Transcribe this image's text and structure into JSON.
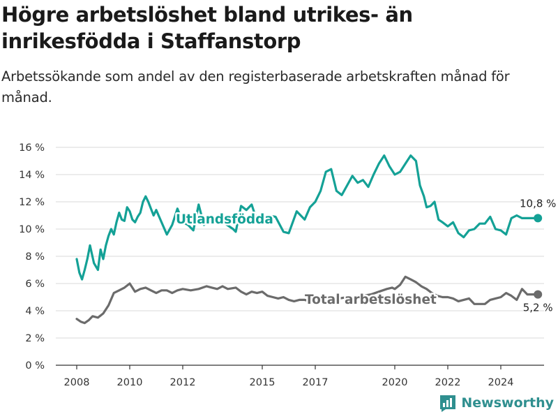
{
  "title": "Högre arbetslöshet bland utrikes- än inrikesfödda i Staffanstorp",
  "subtitle": "Arbetssökande som andel av den registerbaserade arbetskraften månad för månad.",
  "brand": {
    "name": "Newsworthy",
    "icon": "bar-chart-logo-icon"
  },
  "colors": {
    "foreign": "#14a196",
    "total": "#6b6b6b",
    "grid": "#d9d9d9",
    "axis": "#333333"
  },
  "chart_data": {
    "type": "line",
    "ylim": [
      0,
      16
    ],
    "y_ticks": [
      0,
      2,
      4,
      6,
      8,
      10,
      12,
      14,
      16
    ],
    "y_tick_labels": [
      "0 %",
      "2 %",
      "4 %",
      "6 %",
      "8 %",
      "10 %",
      "12 %",
      "14 %",
      "16 %"
    ],
    "x_range": [
      2008,
      2025.5
    ],
    "x_ticks": [
      2008,
      2010,
      2012,
      2015,
      2017,
      2020,
      2022,
      2024
    ],
    "x_tick_labels": [
      "2008",
      "2010",
      "2012",
      "2015",
      "2017",
      "2020",
      "2022",
      "2024"
    ],
    "grid": "horizontal",
    "series": [
      {
        "name": "Utlandsfödda",
        "color": "#14a196",
        "end_label": "10,8 %",
        "x": [
          2008.0,
          2008.1,
          2008.2,
          2008.3,
          2008.4,
          2008.5,
          2008.65,
          2008.8,
          2008.9,
          2009.0,
          2009.1,
          2009.2,
          2009.3,
          2009.4,
          2009.5,
          2009.6,
          2009.7,
          2009.8,
          2009.9,
          2010.0,
          2010.1,
          2010.2,
          2010.3,
          2010.4,
          2010.5,
          2010.6,
          2010.7,
          2010.8,
          2010.9,
          2011.0,
          2011.2,
          2011.4,
          2011.6,
          2011.8,
          2012.0,
          2012.2,
          2012.4,
          2012.6,
          2012.8,
          2013.0,
          2013.3,
          2013.6,
          2013.9,
          2014.0,
          2014.2,
          2014.4,
          2014.6,
          2014.8,
          2015.0,
          2015.2,
          2015.5,
          2015.8,
          2016.0,
          2016.3,
          2016.6,
          2016.8,
          2017.0,
          2017.2,
          2017.4,
          2017.6,
          2017.8,
          2018.0,
          2018.2,
          2018.4,
          2018.6,
          2018.8,
          2019.0,
          2019.2,
          2019.4,
          2019.6,
          2019.8,
          2020.0,
          2020.2,
          2020.4,
          2020.6,
          2020.8,
          2020.95,
          2021.1,
          2021.2,
          2021.35,
          2021.5,
          2021.65,
          2021.8,
          2022.0,
          2022.2,
          2022.4,
          2022.6,
          2022.8,
          2023.0,
          2023.2,
          2023.4,
          2023.6,
          2023.8,
          2024.0,
          2024.2,
          2024.4,
          2024.6,
          2024.8,
          2025.0,
          2025.4
        ],
        "values": [
          7.8,
          6.8,
          6.3,
          7.0,
          7.8,
          8.8,
          7.5,
          7.0,
          8.5,
          7.8,
          8.8,
          9.5,
          10.0,
          9.6,
          10.5,
          11.2,
          10.7,
          10.6,
          11.6,
          11.3,
          10.7,
          10.5,
          10.9,
          11.2,
          12.0,
          12.4,
          12.0,
          11.5,
          11.0,
          11.4,
          10.5,
          9.6,
          10.3,
          11.5,
          10.5,
          10.3,
          9.9,
          11.8,
          10.3,
          10.8,
          10.6,
          10.4,
          10.0,
          9.8,
          11.7,
          11.4,
          11.8,
          10.6,
          10.4,
          11.0,
          10.9,
          9.8,
          9.7,
          11.3,
          10.7,
          11.6,
          12.0,
          12.8,
          14.2,
          14.4,
          12.8,
          12.5,
          13.2,
          13.9,
          13.4,
          13.6,
          13.1,
          14.0,
          14.8,
          15.4,
          14.6,
          14.0,
          14.2,
          14.8,
          15.4,
          15.0,
          13.2,
          12.4,
          11.6,
          11.7,
          12.0,
          10.7,
          10.5,
          10.2,
          10.5,
          9.7,
          9.4,
          9.9,
          10.0,
          10.4,
          10.4,
          10.9,
          10.0,
          9.9,
          9.6,
          10.8,
          11.0,
          10.8,
          10.8,
          10.8
        ]
      },
      {
        "name": "Total arbetslöshet",
        "color": "#6b6b6b",
        "end_label": "5,2 %",
        "x": [
          2008.0,
          2008.15,
          2008.3,
          2008.45,
          2008.6,
          2008.8,
          2009.0,
          2009.2,
          2009.4,
          2009.6,
          2009.8,
          2010.0,
          2010.2,
          2010.4,
          2010.6,
          2010.8,
          2011.0,
          2011.2,
          2011.4,
          2011.6,
          2011.8,
          2012.0,
          2012.3,
          2012.6,
          2012.9,
          2013.1,
          2013.3,
          2013.5,
          2013.7,
          2014.0,
          2014.2,
          2014.4,
          2014.6,
          2014.8,
          2015.0,
          2015.2,
          2015.4,
          2015.6,
          2015.8,
          2016.0,
          2016.2,
          2016.4,
          2016.6,
          2016.8,
          2017.0,
          2017.3,
          2017.6,
          2017.9,
          2018.2,
          2018.5,
          2018.8,
          2019.1,
          2019.4,
          2019.7,
          2019.9,
          2020.0,
          2020.2,
          2020.4,
          2020.6,
          2020.8,
          2021.0,
          2021.2,
          2021.4,
          2021.6,
          2021.8,
          2022.0,
          2022.2,
          2022.4,
          2022.6,
          2022.8,
          2023.0,
          2023.2,
          2023.4,
          2023.6,
          2023.8,
          2024.0,
          2024.2,
          2024.4,
          2024.6,
          2024.8,
          2025.0,
          2025.4
        ],
        "values": [
          3.4,
          3.2,
          3.1,
          3.3,
          3.6,
          3.5,
          3.8,
          4.4,
          5.3,
          5.5,
          5.7,
          6.0,
          5.4,
          5.6,
          5.7,
          5.5,
          5.3,
          5.5,
          5.5,
          5.3,
          5.5,
          5.6,
          5.5,
          5.6,
          5.8,
          5.7,
          5.6,
          5.8,
          5.6,
          5.7,
          5.4,
          5.2,
          5.4,
          5.3,
          5.4,
          5.1,
          5.0,
          4.9,
          5.0,
          4.8,
          4.7,
          4.8,
          4.8,
          4.7,
          4.8,
          4.8,
          4.9,
          4.9,
          5.0,
          5.0,
          5.1,
          5.2,
          5.4,
          5.6,
          5.7,
          5.6,
          5.9,
          6.5,
          6.3,
          6.1,
          5.8,
          5.6,
          5.3,
          5.1,
          5.0,
          5.0,
          4.9,
          4.7,
          4.8,
          4.9,
          4.5,
          4.5,
          4.5,
          4.8,
          4.9,
          5.0,
          5.3,
          5.1,
          4.8,
          5.6,
          5.2,
          5.2
        ]
      }
    ],
    "series_labels": [
      {
        "text": "Utlandsfödda",
        "series": 0
      },
      {
        "text": "Total arbetslöshet",
        "series": 1
      }
    ]
  }
}
